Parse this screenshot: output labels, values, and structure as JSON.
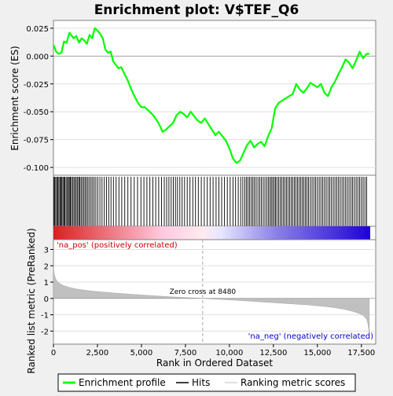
{
  "chart_data": {
    "type": "line",
    "title": "Enrichment plot: V$TEF_Q6",
    "xlabel": "Rank in Ordered Dataset",
    "top_panel": {
      "ylabel": "Enrichment score (ES)",
      "ylim": [
        -0.107,
        0.032
      ],
      "yticks": [
        0.025,
        0.0,
        -0.025,
        -0.05,
        -0.075,
        -0.1
      ],
      "ytick_labels": [
        "0.025",
        "0.000",
        "-0.025",
        "-0.050",
        "-0.075",
        "-0.100"
      ],
      "series": [
        {
          "name": "Enrichment profile",
          "color": "#00ff00",
          "x": [
            0,
            150,
            300,
            450,
            600,
            750,
            900,
            1000,
            1150,
            1300,
            1450,
            1600,
            1750,
            1900,
            2050,
            2200,
            2350,
            2500,
            2650,
            2800,
            2950,
            3100,
            3250,
            3400,
            3550,
            3700,
            3850,
            4000,
            4200,
            4400,
            4600,
            4800,
            5000,
            5200,
            5400,
            5600,
            5800,
            6000,
            6200,
            6400,
            6600,
            6800,
            7000,
            7200,
            7400,
            7600,
            7800,
            8000,
            8200,
            8400,
            8600,
            8800,
            9000,
            9200,
            9400,
            9600,
            9800,
            10000,
            10200,
            10400,
            10600,
            10800,
            11000,
            11200,
            11400,
            11600,
            11800,
            12000,
            12200,
            12400,
            12600,
            12800,
            13000,
            13200,
            13400,
            13600,
            13800,
            14000,
            14200,
            14400,
            14600,
            14800,
            15000,
            15200,
            15400,
            15600,
            15800,
            16000,
            16200,
            16400,
            16600,
            16800,
            17000,
            17200,
            17400,
            17600,
            17800,
            17950
          ],
          "y": [
            0.01,
            0.004,
            0.002,
            0.003,
            0.013,
            0.012,
            0.021,
            0.019,
            0.016,
            0.018,
            0.012,
            0.016,
            0.014,
            0.011,
            0.019,
            0.016,
            0.025,
            0.023,
            0.02,
            0.016,
            0.006,
            0.003,
            0.004,
            -0.005,
            -0.008,
            -0.011,
            -0.01,
            -0.015,
            -0.021,
            -0.029,
            -0.036,
            -0.042,
            -0.046,
            -0.046,
            -0.049,
            -0.052,
            -0.056,
            -0.061,
            -0.068,
            -0.066,
            -0.063,
            -0.06,
            -0.053,
            -0.05,
            -0.052,
            -0.055,
            -0.05,
            -0.054,
            -0.058,
            -0.06,
            -0.056,
            -0.061,
            -0.066,
            -0.071,
            -0.068,
            -0.072,
            -0.076,
            -0.083,
            -0.092,
            -0.096,
            -0.094,
            -0.087,
            -0.08,
            -0.076,
            -0.082,
            -0.079,
            -0.077,
            -0.081,
            -0.072,
            -0.065,
            -0.047,
            -0.042,
            -0.04,
            -0.038,
            -0.036,
            -0.034,
            -0.025,
            -0.03,
            -0.033,
            -0.029,
            -0.024,
            -0.026,
            -0.028,
            -0.025,
            -0.033,
            -0.036,
            -0.028,
            -0.023,
            -0.016,
            -0.01,
            -0.003,
            -0.006,
            -0.011,
            -0.004,
            0.004,
            -0.002,
            0.002,
            0.002
          ]
        }
      ]
    },
    "hits_panel": {
      "hit_ranks": [
        20,
        70,
        130,
        190,
        250,
        310,
        370,
        430,
        480,
        540,
        600,
        650,
        720,
        790,
        850,
        900,
        960,
        1020,
        1090,
        1160,
        1230,
        1300,
        1370,
        1440,
        1500,
        1570,
        1650,
        1730,
        1800,
        1880,
        1960,
        2050,
        2140,
        2230,
        2320,
        2410,
        2520,
        2640,
        2760,
        2890,
        3010,
        3140,
        3270,
        3410,
        3560,
        3720,
        3880,
        4050,
        4230,
        4410,
        4590,
        4780,
        4970,
        5140,
        5310,
        5480,
        5650,
        5810,
        5980,
        6140,
        6300,
        6430,
        6560,
        6690,
        6810,
        6930,
        7050,
        7180,
        7310,
        7450,
        7600,
        7760,
        7920,
        8070,
        8230,
        8400,
        8570,
        8740,
        8900,
        9070,
        9240,
        9400,
        9560,
        9720,
        9880,
        10040,
        10200,
        10350,
        10500,
        10640,
        10760,
        10870,
        10970,
        11060,
        11150,
        11240,
        11330,
        11420,
        11520,
        11620,
        11720,
        11820,
        11920,
        12020,
        12120,
        12210,
        12300,
        12380,
        12460,
        12540,
        12620,
        12700,
        12790,
        12880,
        12970,
        13060,
        13150,
        13240,
        13330,
        13420,
        13510,
        13600,
        13690,
        13780,
        13870,
        13960,
        14050,
        14140,
        14230,
        14320,
        14410,
        14500,
        14600,
        14700,
        14800,
        14900,
        15000,
        15100,
        15200,
        15300,
        15400,
        15500,
        15600,
        15700,
        15800,
        15900,
        16000,
        16100,
        16200,
        16300,
        16400,
        16500,
        16600,
        16700,
        16800,
        16900,
        17000,
        17100,
        17200,
        17300,
        17400,
        17500,
        17600,
        17700,
        17800
      ],
      "gradient_colors": [
        "#dc1e1e",
        "#ffc8dc",
        "#e6e6ff",
        "#1e00dc"
      ]
    },
    "bottom_panel": {
      "ylabel": "Ranked list metric (PreRanked)",
      "ylim": [
        -2.8,
        3.6
      ],
      "yticks": [
        3,
        2,
        1,
        0,
        -1,
        -2
      ],
      "ytick_labels": [
        "3",
        "2",
        "1",
        "0",
        "-1",
        "-2"
      ],
      "fill_color": "#c0c0c0",
      "metric_x": [
        0,
        30,
        80,
        150,
        250,
        400,
        600,
        900,
        1300,
        1800,
        2500,
        3500,
        4500,
        5500,
        6500,
        7500,
        8480,
        9500,
        10500,
        11500,
        12500,
        13500,
        14500,
        15500,
        16000,
        16500,
        17000,
        17300,
        17550,
        17700,
        17800,
        17870,
        17920,
        17950
      ],
      "metric_y": [
        1.9,
        1.6,
        1.35,
        1.15,
        1.0,
        0.88,
        0.78,
        0.68,
        0.58,
        0.5,
        0.42,
        0.33,
        0.25,
        0.18,
        0.11,
        0.05,
        0.0,
        -0.06,
        -0.12,
        -0.19,
        -0.26,
        -0.33,
        -0.4,
        -0.5,
        -0.57,
        -0.66,
        -0.79,
        -0.9,
        -1.0,
        -1.15,
        -1.3,
        -1.55,
        -1.95,
        -2.5
      ],
      "zero_cross_rank": 8480,
      "zero_cross_label": "Zero cross at 8480",
      "pos_label": "'na_pos' (positively correlated)",
      "neg_label": "'na_neg' (negatively correlated)",
      "pos_color": "#cc0000",
      "neg_color": "#0000cc"
    },
    "xlim": [
      0,
      18000
    ],
    "xticks": [
      0,
      2500,
      5000,
      7500,
      10000,
      12500,
      15000,
      17500
    ],
    "xtick_labels": [
      "0",
      "2,500",
      "5,000",
      "7,500",
      "10,000",
      "12,500",
      "15,000",
      "17,500"
    ],
    "legend": {
      "placement": "bottom",
      "items": [
        {
          "label": "Enrichment profile",
          "color": "#00ff00"
        },
        {
          "label": "Hits",
          "color": "#000000"
        },
        {
          "label": "Ranking metric scores",
          "color": "#c0c0c0"
        }
      ]
    }
  }
}
